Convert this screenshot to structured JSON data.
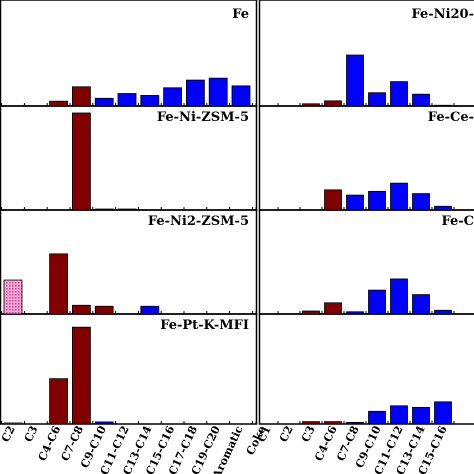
{
  "chart_data": [
    {
      "type": "bar",
      "title": "Fe",
      "categories": [
        "C1",
        "C2",
        "C3",
        "C4-C6",
        "C7-C8",
        "C9-C10",
        "C11-C12",
        "C13-C14",
        "C15-C16",
        "C17-C18",
        "C19-C20",
        "Aromatic",
        "Coke"
      ],
      "values": [
        0,
        0,
        0.5,
        2.0,
        0.8,
        1.3,
        1.1,
        1.9,
        2.7,
        2.9,
        2.1,
        0,
        1.0
      ],
      "colors": [
        "#800000",
        "#800000",
        "#800000",
        "#800000",
        "#0000ff",
        "#0000ff",
        "#0000ff",
        "#0000ff",
        "#0000ff",
        "#0000ff",
        "#0000ff",
        "#ff0000",
        "#000000"
      ],
      "ylim": [
        0,
        10
      ]
    },
    {
      "type": "bar",
      "title": "Fe-Ni-ZSM-5",
      "categories": [
        "C1",
        "C2",
        "C3",
        "C4-C6",
        "C7-C8",
        "C9-C10",
        "C11-C12",
        "C13-C14",
        "C15-C16",
        "C17-C18",
        "C19-C20",
        "Aromatic",
        "Coke"
      ],
      "values": [
        0,
        0,
        0,
        10.0,
        0.1,
        0.1,
        0,
        0,
        0,
        0,
        0,
        0,
        0.2
      ],
      "colors": [
        "#800000",
        "#800000",
        "#800000",
        "#800000",
        "#0000ff",
        "#0000ff",
        "#0000ff",
        "#0000ff",
        "#0000ff",
        "#0000ff",
        "#0000ff",
        "#ff0000",
        "#000000"
      ],
      "ylim": [
        0,
        10
      ]
    },
    {
      "type": "bar",
      "title": "Fe-Ni2-ZSM-5",
      "categories": [
        "C1",
        "C2",
        "C3",
        "C4-C6",
        "C7-C8",
        "C9-C10",
        "C11-C12",
        "C13-C14",
        "C15-C16",
        "C17-C18",
        "C19-C20",
        "Aromatic",
        "Coke"
      ],
      "values": [
        3.5,
        0,
        6.2,
        0.9,
        0.8,
        0,
        0.8,
        0,
        0,
        0,
        0,
        0.4,
        0.3
      ],
      "colors": [
        "#e377c2",
        "#800000",
        "#800000",
        "#800000",
        "#800000",
        "#0000ff",
        "#0000ff",
        "#0000ff",
        "#0000ff",
        "#0000ff",
        "#0000ff",
        "#ff0000",
        "#000000"
      ],
      "ylim": [
        0,
        10
      ]
    },
    {
      "type": "bar",
      "title": "Fe-Pt-K-MFI",
      "categories": [
        "C1",
        "C2",
        "C3",
        "C4-C6",
        "C7-C8",
        "C9-C10",
        "C11-C12",
        "C13-C14",
        "C15-C16",
        "C17-C18",
        "C19-C20",
        "Aromatic",
        "Coke"
      ],
      "values": [
        0.1,
        0,
        4.4,
        9.4,
        0.2,
        0,
        0,
        0,
        0,
        0,
        0,
        0.1,
        0
      ],
      "colors": [
        "#e377c2",
        "#800000",
        "#800000",
        "#800000",
        "#0000ff",
        "#0000ff",
        "#0000ff",
        "#0000ff",
        "#0000ff",
        "#0000ff",
        "#0000ff",
        "#ff0000",
        "#000000"
      ],
      "ylim": [
        0,
        10
      ]
    },
    {
      "type": "bar",
      "title": "Fe-Ni20-",
      "categories": [
        "C1",
        "C2",
        "C3",
        "C4-C6",
        "C7-C8",
        "C9-C10",
        "C11-C12",
        "C13-C14",
        "C15-C16"
      ],
      "values": [
        0,
        0,
        0.3,
        0.7,
        6.9,
        1.8,
        3.3,
        1.6,
        0.1
      ],
      "colors": [
        "#800000",
        "#800000",
        "#800000",
        "#800000",
        "#0000ff",
        "#0000ff",
        "#0000ff",
        "#0000ff",
        "#0000ff"
      ],
      "ylim": [
        0,
        13
      ]
    },
    {
      "type": "bar",
      "title": "Fe-Ce-",
      "categories": [
        "C1",
        "C2",
        "C3",
        "C4-C6",
        "C7-C8",
        "C9-C10",
        "C11-C12",
        "C13-C14",
        "C15-C16"
      ],
      "values": [
        0,
        0,
        0,
        2.7,
        2.0,
        2.5,
        3.6,
        2.2,
        0.5
      ],
      "colors": [
        "#800000",
        "#800000",
        "#800000",
        "#800000",
        "#0000ff",
        "#0000ff",
        "#0000ff",
        "#0000ff",
        "#0000ff"
      ],
      "ylim": [
        0,
        13
      ]
    },
    {
      "type": "bar",
      "title": "Fe-C",
      "categories": [
        "C1",
        "C2",
        "C3",
        "C4-C6",
        "C7-C8",
        "C9-C10",
        "C11-C12",
        "C13-C14",
        "C15-C16"
      ],
      "values": [
        0,
        0,
        0.4,
        1.5,
        0.3,
        3.2,
        4.7,
        2.6,
        0.5
      ],
      "colors": [
        "#800000",
        "#800000",
        "#800000",
        "#800000",
        "#0000ff",
        "#0000ff",
        "#0000ff",
        "#0000ff",
        "#0000ff"
      ],
      "ylim": [
        0,
        13
      ]
    },
    {
      "type": "bar",
      "title": "",
      "categories": [
        "C1",
        "C2",
        "C3",
        "C4-C6",
        "C7-C8",
        "C9-C10",
        "C11-C12",
        "C13-C14",
        "C15-C16"
      ],
      "values": [
        0,
        0,
        0.3,
        0.3,
        0.2,
        1.6,
        2.3,
        2.1,
        2.8
      ],
      "colors": [
        "#800000",
        "#800000",
        "#800000",
        "#800000",
        "#0000ff",
        "#0000ff",
        "#0000ff",
        "#0000ff",
        "#0000ff"
      ],
      "ylim": [
        0,
        13
      ]
    }
  ],
  "x_tick_labels_left": [
    "C2",
    "C3",
    "C4-C6",
    "C7-C8",
    "C9-C10",
    "C11-C12",
    "C13-C14",
    "C15-C16",
    "C17-C18",
    "C19-C20",
    "Aromatic",
    "Coke"
  ],
  "x_tick_labels_right": [
    "C1",
    "C2",
    "C3",
    "C4-C6",
    "C7-C8",
    "C9-C10",
    "C11-C12",
    "C13-C14",
    "C15-C16"
  ]
}
